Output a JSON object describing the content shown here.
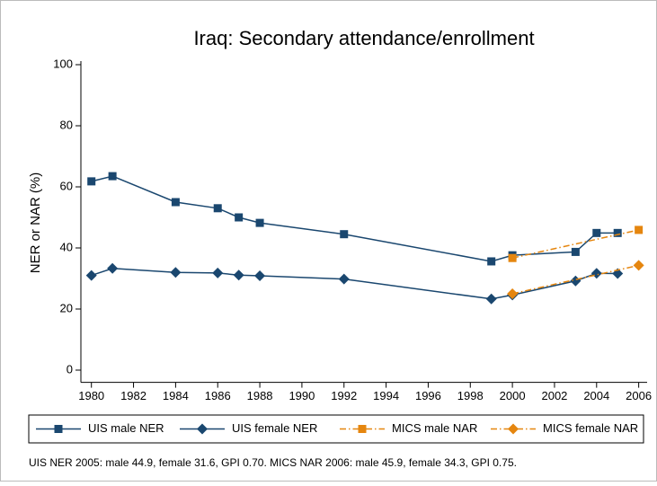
{
  "chart_data": {
    "type": "line",
    "title": "Iraq: Secondary attendance/enrollment",
    "y_label": "NER or NAR (%)",
    "note": "UIS NER 2005: male 44.9, female 31.6, GPI 0.70. MICS NAR 2006: male 45.9, female 34.3, GPI 0.75.",
    "xlim": [
      1979.5,
      2006.4
    ],
    "xticks": [
      1980,
      1982,
      1984,
      1986,
      1988,
      1990,
      1992,
      1994,
      1996,
      1998,
      2000,
      2002,
      2004,
      2006
    ],
    "ylim": [
      -4,
      100
    ],
    "yticks": [
      0,
      20,
      40,
      60,
      80,
      100
    ],
    "legend": "bottom",
    "series": [
      {
        "name": "UIS male NER",
        "color": "#1a476f",
        "marker": "square",
        "line_style": "solid",
        "x": [
          1980,
          1981,
          1984,
          1986,
          1987,
          1988,
          1992,
          1999,
          2000,
          2003,
          2004,
          2005
        ],
        "values": [
          61.8,
          63.5,
          55,
          53,
          50,
          48.2,
          44.5,
          35.6,
          37.6,
          38.7,
          44.9,
          44.9
        ]
      },
      {
        "name": "UIS female NER",
        "color": "#1a476f",
        "marker": "diamond",
        "line_style": "solid",
        "x": [
          1980,
          1981,
          1984,
          1986,
          1987,
          1988,
          1992,
          1999,
          2000,
          2003,
          2004,
          2005
        ],
        "values": [
          31,
          33.3,
          32,
          31.8,
          31.1,
          30.9,
          29.8,
          23.3,
          24.6,
          29.2,
          31.7,
          31.6
        ]
      },
      {
        "name": "MICS male NAR",
        "color": "#e5860f",
        "marker": "square",
        "line_style": "dashdot",
        "x": [
          2000,
          2006
        ],
        "values": [
          36.7,
          45.9
        ]
      },
      {
        "name": "MICS female NAR",
        "color": "#e5860f",
        "marker": "diamond",
        "line_style": "dashdot",
        "x": [
          2000,
          2006
        ],
        "values": [
          25,
          34.3
        ]
      }
    ]
  }
}
